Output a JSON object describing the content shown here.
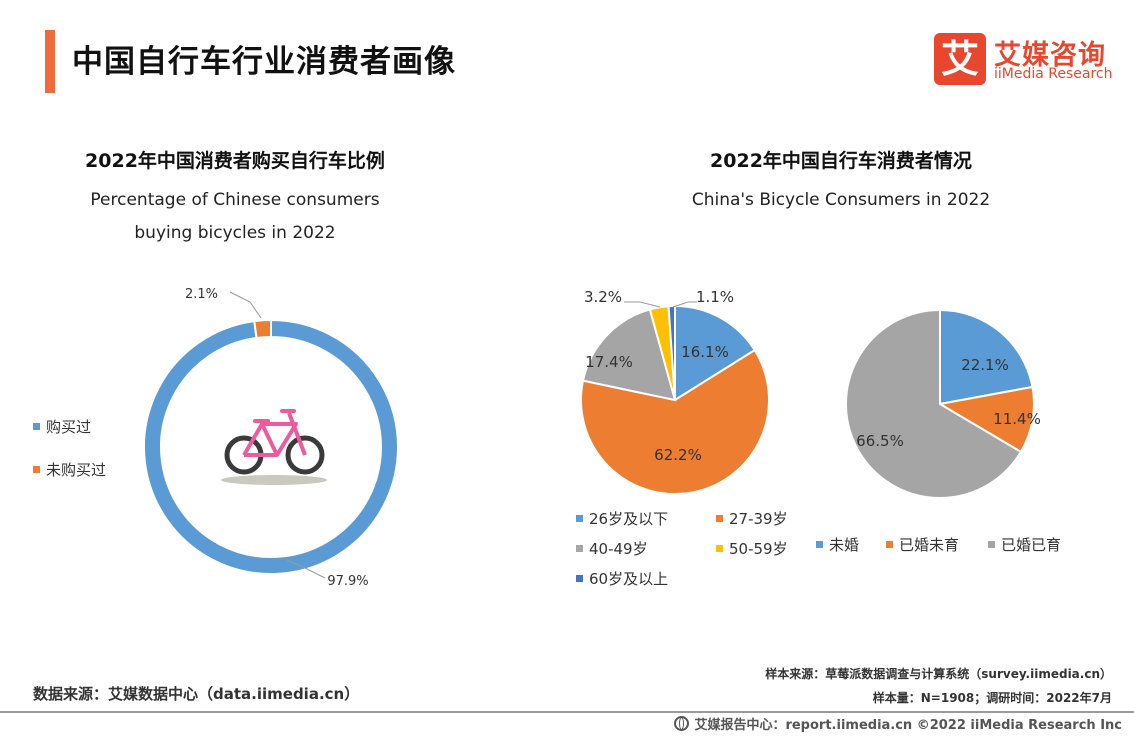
{
  "header": {
    "title": "中国自行车行业消费者画像",
    "logo_mark": "艾",
    "logo_cn": "艾媒咨询",
    "logo_en": "iiMedia Research"
  },
  "colors": {
    "accent": "#f16a3b",
    "blue": "#5b9bd5",
    "orange": "#ed7d31",
    "gray": "#a5a5a5",
    "yellow": "#ffc000",
    "dark_blue": "#4472c4"
  },
  "left_panel": {
    "title_cn": "2022年中国消费者购买自行车比例",
    "title_en_line1": "Percentage of Chinese consumers",
    "title_en_line2": "buying bicycles in 2022",
    "icon": "bicycle-icon"
  },
  "right_panel": {
    "title_cn": "2022年中国自行车消费者情况",
    "title_en": "China's Bicycle Consumers in 2022"
  },
  "chart_data": [
    {
      "type": "pie",
      "variant": "donut",
      "categories": [
        "购买过",
        "未购买过"
      ],
      "values": [
        97.9,
        2.1
      ],
      "labels": [
        "97.9%",
        "2.1%"
      ],
      "colors": [
        "#5b9bd5",
        "#ed7d31"
      ],
      "legend_position": "left"
    },
    {
      "type": "pie",
      "categories": [
        "26岁及以下",
        "27-39岁",
        "40-49岁",
        "50-59岁",
        "60岁及以上"
      ],
      "values": [
        16.1,
        62.2,
        17.4,
        3.2,
        1.1
      ],
      "labels": [
        "16.1%",
        "62.2%",
        "17.4%",
        "3.2%",
        "1.1%"
      ],
      "colors": [
        "#5b9bd5",
        "#ed7d31",
        "#a5a5a5",
        "#ffc000",
        "#4472c4"
      ],
      "legend_position": "bottom"
    },
    {
      "type": "pie",
      "categories": [
        "未婚",
        "已婚未育",
        "已婚已育"
      ],
      "values": [
        22.1,
        11.4,
        66.5
      ],
      "labels": [
        "22.1%",
        "11.4%",
        "66.5%"
      ],
      "colors": [
        "#5b9bd5",
        "#ed7d31",
        "#a5a5a5"
      ],
      "legend_position": "bottom"
    }
  ],
  "sources": {
    "left": "数据来源：艾媒数据中心（data.iimedia.cn）",
    "sample_source": "样本来源：草莓派数据调查与计算系统（survey.iimedia.cn）",
    "sample_size": "样本量：N=1908；调研时间：2022年7月",
    "footer": "艾媒报告中心：report.iimedia.cn  ©2022  iiMedia Research  Inc"
  }
}
